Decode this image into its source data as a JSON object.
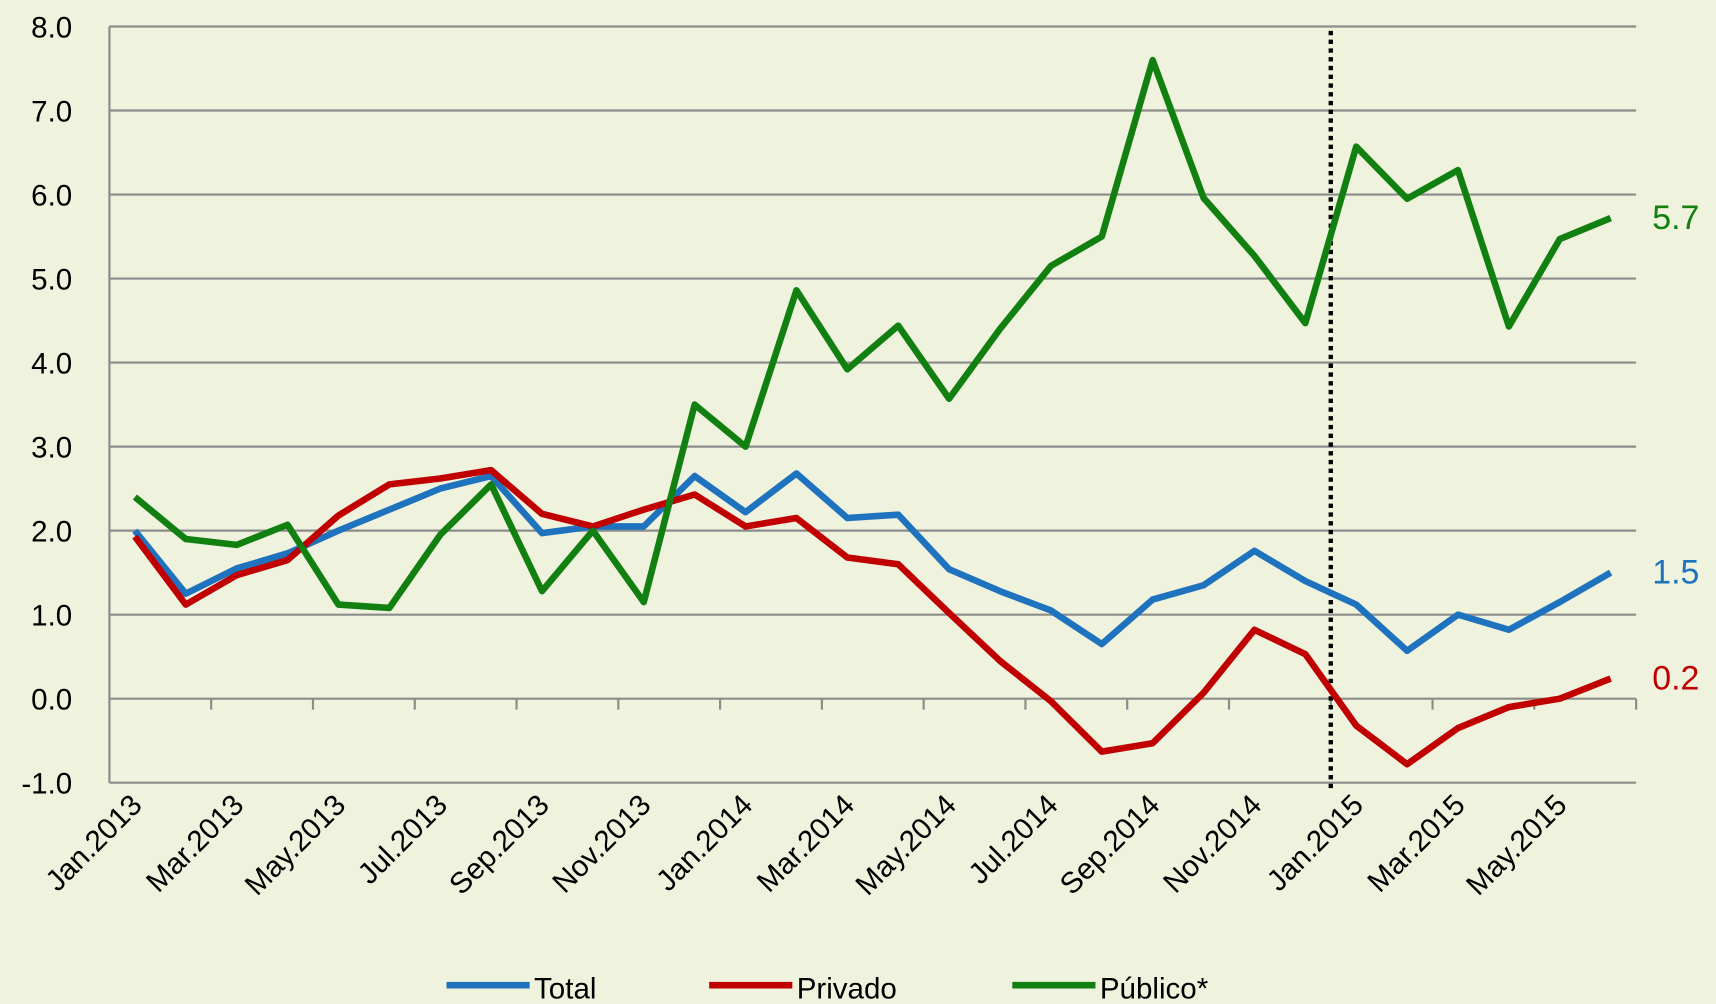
{
  "chart_data": {
    "type": "line",
    "categories": [
      "Jan.2013",
      null,
      "Mar.2013",
      null,
      "May.2013",
      null,
      "Jul.2013",
      null,
      "Sep.2013",
      null,
      "Nov.2013",
      null,
      "Jan.2014",
      null,
      "Mar.2014",
      null,
      "May.2014",
      null,
      "Jul.2014",
      null,
      "Sep.2014",
      null,
      "Nov.2014",
      null,
      "Jan.2015",
      null,
      "Mar.2015",
      null,
      "May.2015",
      null
    ],
    "series": [
      {
        "name": "Total",
        "color": "#1f73be",
        "values": [
          2.0,
          1.25,
          1.55,
          1.73,
          2.0,
          2.25,
          2.5,
          2.65,
          1.97,
          2.05,
          2.05,
          2.65,
          2.22,
          2.68,
          2.15,
          2.19,
          1.54,
          1.28,
          1.05,
          0.65,
          1.18,
          1.35,
          1.76,
          1.4,
          1.12,
          0.57,
          1.0,
          0.82,
          1.15,
          1.5
        ],
        "value_labels": [
          null,
          null,
          null,
          null,
          null,
          null,
          null,
          null,
          null,
          null,
          null,
          null,
          null,
          null,
          null,
          null,
          null,
          null,
          null,
          null,
          null,
          null,
          null,
          null,
          null,
          null,
          null,
          null,
          null,
          "1.5"
        ]
      },
      {
        "name": "Privado",
        "color": "#c00000",
        "values": [
          1.93,
          1.12,
          1.47,
          1.65,
          2.18,
          2.55,
          2.62,
          2.72,
          2.2,
          2.05,
          2.25,
          2.43,
          2.05,
          2.15,
          1.68,
          1.6,
          1.02,
          0.45,
          -0.03,
          -0.63,
          -0.53,
          0.07,
          0.82,
          0.53,
          -0.32,
          -0.78,
          -0.35,
          -0.1,
          0.0,
          0.24
        ],
        "value_labels": [
          null,
          null,
          null,
          null,
          null,
          null,
          null,
          null,
          null,
          null,
          null,
          null,
          null,
          null,
          null,
          null,
          null,
          null,
          null,
          null,
          null,
          null,
          null,
          null,
          null,
          null,
          null,
          null,
          null,
          "0.2"
        ]
      },
      {
        "name": "Público*",
        "color": "#118011",
        "values": [
          2.4,
          1.9,
          1.83,
          2.07,
          1.12,
          1.08,
          1.95,
          2.55,
          1.28,
          2.0,
          1.15,
          3.5,
          3.0,
          4.86,
          3.92,
          4.44,
          3.57,
          4.4,
          5.15,
          5.5,
          7.6,
          5.96,
          5.27,
          4.47,
          6.57,
          5.95,
          6.29,
          4.43,
          5.47,
          5.72
        ],
        "value_labels": [
          null,
          null,
          null,
          null,
          null,
          null,
          null,
          null,
          null,
          null,
          null,
          null,
          null,
          null,
          null,
          null,
          null,
          null,
          null,
          null,
          null,
          null,
          null,
          null,
          null,
          null,
          null,
          null,
          null,
          "5.7"
        ]
      }
    ],
    "ylim": [
      -1,
      8
    ],
    "yticks": [
      {
        "value": -1,
        "label": "-1.0"
      },
      {
        "value": 0,
        "label": "0.0"
      },
      {
        "value": 1,
        "label": "1.0"
      },
      {
        "value": 2,
        "label": "2.0"
      },
      {
        "value": 3,
        "label": "3.0"
      },
      {
        "value": 4,
        "label": "4.0"
      },
      {
        "value": 5,
        "label": "5.0"
      },
      {
        "value": 6,
        "label": "6.0"
      },
      {
        "value": 7,
        "label": "7.0"
      },
      {
        "value": 8,
        "label": "8.0"
      }
    ],
    "grid": true,
    "vline": 23.5,
    "legend": "bottom"
  }
}
